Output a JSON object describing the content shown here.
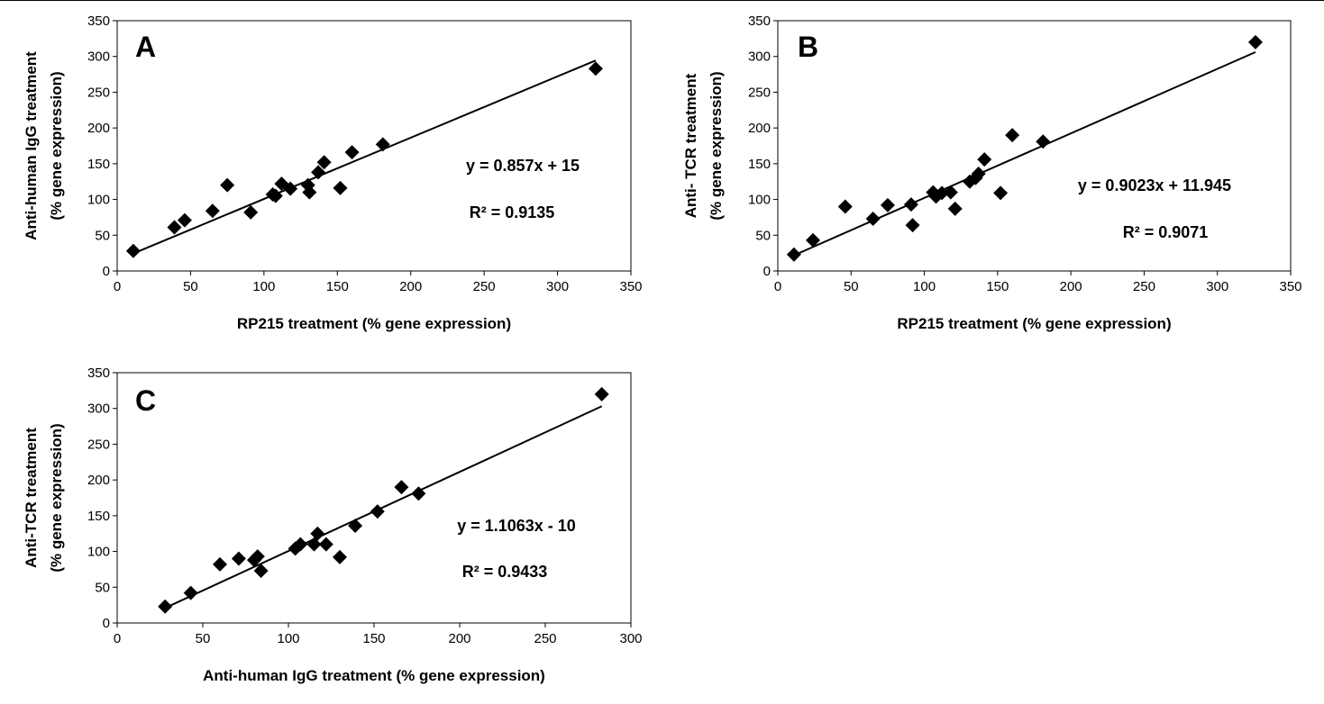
{
  "chart_data": [
    {
      "type": "scatter",
      "panel_label": "A",
      "title": "",
      "xlabel": "RP215 treatment (% gene expression)",
      "ylabel_lines": [
        "Anti-human IgG treatment",
        "(% gene expression)"
      ],
      "xlim": [
        0,
        350
      ],
      "ylim": [
        0,
        350
      ],
      "xticks": [
        "0",
        "50",
        "100",
        "150",
        "200",
        "250",
        "300",
        "350"
      ],
      "yticks": [
        "0",
        "50",
        "100",
        "150",
        "200",
        "250",
        "300",
        "350"
      ],
      "grid": false,
      "legend": "none",
      "marker": "diamond",
      "points": [
        [
          11,
          28
        ],
        [
          39,
          61
        ],
        [
          46,
          71
        ],
        [
          65,
          84
        ],
        [
          75,
          120
        ],
        [
          91,
          82
        ],
        [
          106,
          107
        ],
        [
          108,
          105
        ],
        [
          112,
          122
        ],
        [
          118,
          115
        ],
        [
          130,
          120
        ],
        [
          131,
          110
        ],
        [
          137,
          138
        ],
        [
          141,
          152
        ],
        [
          152,
          116
        ],
        [
          160,
          166
        ],
        [
          181,
          177
        ],
        [
          326,
          283
        ]
      ],
      "trendline": {
        "slope": 0.857,
        "intercept": 15,
        "x_range": [
          11,
          326
        ]
      },
      "annotations": [
        "y = 0.857x + 15",
        "R² = 0.9135"
      ]
    },
    {
      "type": "scatter",
      "panel_label": "B",
      "title": "",
      "xlabel": "RP215 treatment (% gene expression)",
      "ylabel_lines": [
        "Anti- TCR treatment",
        "(% gene expression)"
      ],
      "xlim": [
        0,
        350
      ],
      "ylim": [
        0,
        350
      ],
      "xticks": [
        "0",
        "50",
        "100",
        "150",
        "200",
        "250",
        "300",
        "350"
      ],
      "yticks": [
        "0",
        "50",
        "100",
        "150",
        "200",
        "250",
        "300",
        "350"
      ],
      "grid": false,
      "legend": "none",
      "marker": "diamond",
      "points": [
        [
          11,
          23
        ],
        [
          24,
          43
        ],
        [
          46,
          90
        ],
        [
          65,
          73
        ],
        [
          75,
          92
        ],
        [
          91,
          93
        ],
        [
          92,
          64
        ],
        [
          106,
          110
        ],
        [
          108,
          104
        ],
        [
          112,
          109
        ],
        [
          118,
          110
        ],
        [
          121,
          87
        ],
        [
          131,
          125
        ],
        [
          135,
          130
        ],
        [
          137,
          136
        ],
        [
          141,
          156
        ],
        [
          152,
          109
        ],
        [
          160,
          190
        ],
        [
          181,
          181
        ],
        [
          326,
          320
        ]
      ],
      "trendline": {
        "slope": 0.9023,
        "intercept": 11.945,
        "x_range": [
          11,
          326
        ]
      },
      "annotations": [
        "y = 0.9023x + 11.945",
        "R² = 0.9071"
      ]
    },
    {
      "type": "scatter",
      "panel_label": "C",
      "title": "",
      "xlabel": "Anti-human IgG treatment (% gene expression)",
      "ylabel_lines": [
        "Anti-TCR treatment",
        "(% gene expression)"
      ],
      "xlim": [
        0,
        300
      ],
      "ylim": [
        0,
        350
      ],
      "xticks": [
        "0",
        "50",
        "100",
        "150",
        "200",
        "250",
        "300"
      ],
      "yticks": [
        "0",
        "50",
        "100",
        "150",
        "200",
        "250",
        "300",
        "350"
      ],
      "grid": false,
      "legend": "none",
      "marker": "diamond",
      "points": [
        [
          28,
          23
        ],
        [
          43,
          42
        ],
        [
          60,
          82
        ],
        [
          71,
          90
        ],
        [
          80,
          88
        ],
        [
          82,
          93
        ],
        [
          84,
          73
        ],
        [
          104,
          104
        ],
        [
          107,
          110
        ],
        [
          115,
          110
        ],
        [
          117,
          125
        ],
        [
          122,
          110
        ],
        [
          130,
          92
        ],
        [
          139,
          136
        ],
        [
          152,
          156
        ],
        [
          166,
          190
        ],
        [
          176,
          181
        ],
        [
          283,
          320
        ]
      ],
      "trendline": {
        "slope": 1.1063,
        "intercept": -10,
        "x_range": [
          28,
          283
        ]
      },
      "annotations": [
        "y = 1.1063x - 10",
        "R² = 0.9433"
      ]
    }
  ]
}
